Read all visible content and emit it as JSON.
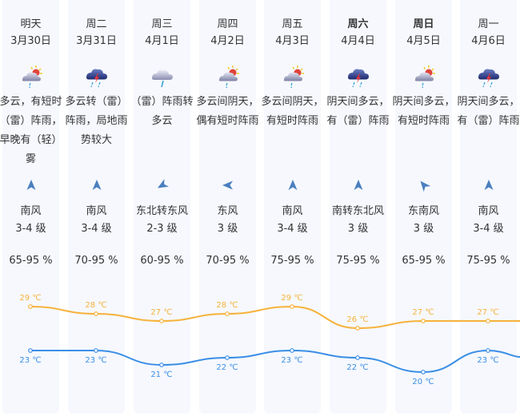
{
  "forecast": [
    {
      "day": "明天",
      "date": "3月30日",
      "bold": false,
      "icon": "partly-cloudy-rain-icon",
      "desc": "多云，有短时（雷）阵雨，早晚有（轻）雾",
      "wind_dir": "南风",
      "wind_level": "3-4 级",
      "wind_arrow": "north",
      "humidity": "65-95 %",
      "high": "29 ℃",
      "low": "23 ℃"
    },
    {
      "day": "周二",
      "date": "3月31日",
      "bold": false,
      "icon": "thunderstorm-icon",
      "desc": "多云转（雷）阵雨，局地雨势较大",
      "wind_dir": "南风",
      "wind_level": "3-4 级",
      "wind_arrow": "north",
      "humidity": "70-95 %",
      "high": "28 ℃",
      "low": "23 ℃"
    },
    {
      "day": "周三",
      "date": "4月1日",
      "bold": false,
      "icon": "cloud-rain-icon",
      "desc": "（雷）阵雨转多云",
      "wind_dir": "东北转东风",
      "wind_level": "2-3 级",
      "wind_arrow": "southwest",
      "humidity": "60-95 %",
      "high": "27 ℃",
      "low": "21 ℃"
    },
    {
      "day": "周四",
      "date": "4月2日",
      "bold": false,
      "icon": "partly-cloudy-rain-icon",
      "desc": "多云间阴天，偶有短时阵雨",
      "wind_dir": "东风",
      "wind_level": "3 级",
      "wind_arrow": "west",
      "humidity": "70-95 %",
      "high": "28 ℃",
      "low": "22 ℃"
    },
    {
      "day": "周五",
      "date": "4月3日",
      "bold": false,
      "icon": "partly-cloudy-rain-icon",
      "desc": "多云间阴天，有短时阵雨",
      "wind_dir": "南风",
      "wind_level": "3-4 级",
      "wind_arrow": "north",
      "humidity": "75-95 %",
      "high": "29 ℃",
      "low": "23 ℃"
    },
    {
      "day": "周六",
      "date": "4月4日",
      "bold": true,
      "icon": "thunderstorm-icon",
      "desc": "阴天间多云，有（雷）阵雨",
      "wind_dir": "南转东北风",
      "wind_level": "3 级",
      "wind_arrow": "north",
      "humidity": "75-95 %",
      "high": "26 ℃",
      "low": "22 ℃"
    },
    {
      "day": "周日",
      "date": "4月5日",
      "bold": true,
      "icon": "partly-cloudy-rain-icon",
      "desc": "阴天间多云，有短时阵雨",
      "wind_dir": "东南风",
      "wind_level": "3 级",
      "wind_arrow": "northwest",
      "humidity": "65-95 %",
      "high": "27 ℃",
      "low": "20 ℃"
    },
    {
      "day": "周一",
      "date": "4月6日",
      "bold": false,
      "icon": "thunderstorm-icon",
      "desc": "阴天间多云，有（雷）阵雨",
      "wind_dir": "南风",
      "wind_level": "3-4 级",
      "wind_arrow": "north",
      "humidity": "75-95 %",
      "high": "27 ℃",
      "low": "23 ℃"
    }
  ],
  "temperature": {
    "high_values": [
      29,
      28,
      27,
      28,
      29,
      26,
      27,
      27
    ],
    "low_values": [
      23,
      23,
      21,
      22,
      23,
      22,
      20,
      23
    ],
    "unit": "℃",
    "high_color": "#f7b23b",
    "low_color": "#3a8ee6"
  },
  "colors": {
    "column_bg": "#f6f8fd",
    "arrow": "#4a7fbf"
  }
}
